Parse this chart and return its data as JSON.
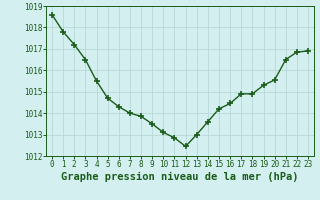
{
  "x": [
    0,
    1,
    2,
    3,
    4,
    5,
    6,
    7,
    8,
    9,
    10,
    11,
    12,
    13,
    14,
    15,
    16,
    17,
    18,
    19,
    20,
    21,
    22,
    23
  ],
  "y": [
    1018.6,
    1017.8,
    1017.2,
    1016.5,
    1015.5,
    1014.7,
    1014.3,
    1014.0,
    1013.85,
    1013.5,
    1013.1,
    1012.85,
    1012.45,
    1013.0,
    1013.6,
    1014.2,
    1014.45,
    1014.9,
    1014.9,
    1015.3,
    1015.55,
    1016.5,
    1016.85,
    1016.9
  ],
  "line_color": "#1a5c1a",
  "marker_color": "#1a5c1a",
  "bg_color": "#d4efef",
  "grid_color": "#b8d8d8",
  "xlabel": "Graphe pression niveau de la mer (hPa)",
  "xlabel_color": "#1a5c1a",
  "ylim_min": 1012,
  "ylim_max": 1019,
  "yticks": [
    1012,
    1013,
    1014,
    1015,
    1016,
    1017,
    1018,
    1019
  ],
  "xticks": [
    0,
    1,
    2,
    3,
    4,
    5,
    6,
    7,
    8,
    9,
    10,
    11,
    12,
    13,
    14,
    15,
    16,
    17,
    18,
    19,
    20,
    21,
    22,
    23
  ],
  "tick_color": "#1a5c1a",
  "tick_fontsize": 5.5,
  "xlabel_fontsize": 7.5,
  "line_width": 1.0,
  "marker_size": 4
}
